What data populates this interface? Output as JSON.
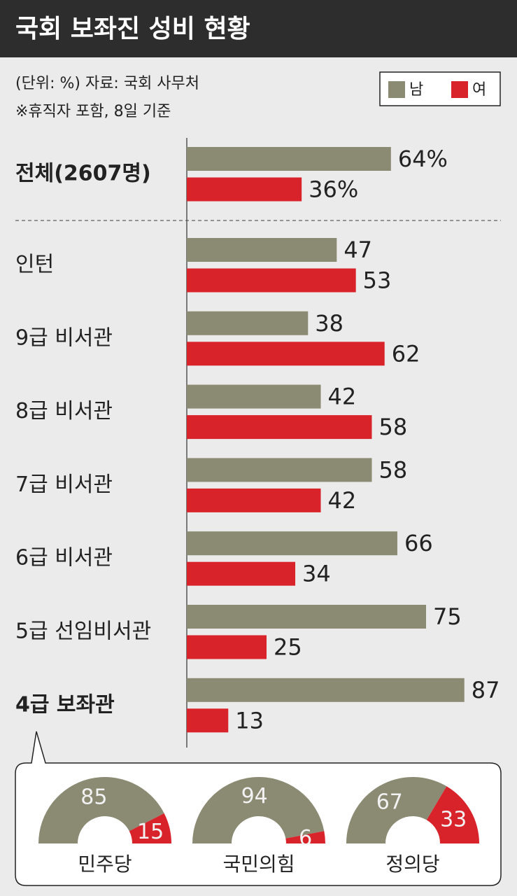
{
  "chart_data": [
    {
      "type": "bar",
      "title": "국회 보좌진 성비 현황",
      "subtitle": "(단위: %)  자료: 국회 사무처",
      "note": "※휴직자 포함, 8일 기준",
      "categories": [
        "전체(2607명)",
        "인턴",
        "9급 비서관",
        "8급 비서관",
        "7급 비서관",
        "6급 비서관",
        "5급 선임비서관",
        "4급 보좌관"
      ],
      "series": [
        {
          "name": "남",
          "color": "#8b8a73",
          "values": [
            64,
            47,
            38,
            42,
            58,
            66,
            75,
            87
          ],
          "value_labels": [
            "64%",
            "47",
            "38",
            "42",
            "58",
            "66",
            "75",
            "87"
          ]
        },
        {
          "name": "여",
          "color": "#d9232a",
          "values": [
            36,
            53,
            62,
            58,
            42,
            34,
            25,
            13
          ],
          "value_labels": [
            "36%",
            "53",
            "62",
            "58",
            "42",
            "34",
            "25",
            "13"
          ]
        }
      ]
    },
    {
      "type": "pie",
      "label": "민주당",
      "values": [
        85,
        15
      ],
      "colors": [
        "#8b8a73",
        "#d9232a"
      ]
    },
    {
      "type": "pie",
      "label": "국민의힘",
      "values": [
        94,
        6
      ],
      "colors": [
        "#8b8a73",
        "#d9232a"
      ]
    },
    {
      "type": "pie",
      "label": "정의당",
      "values": [
        67,
        33
      ],
      "colors": [
        "#8b8a73",
        "#d9232a"
      ]
    }
  ]
}
